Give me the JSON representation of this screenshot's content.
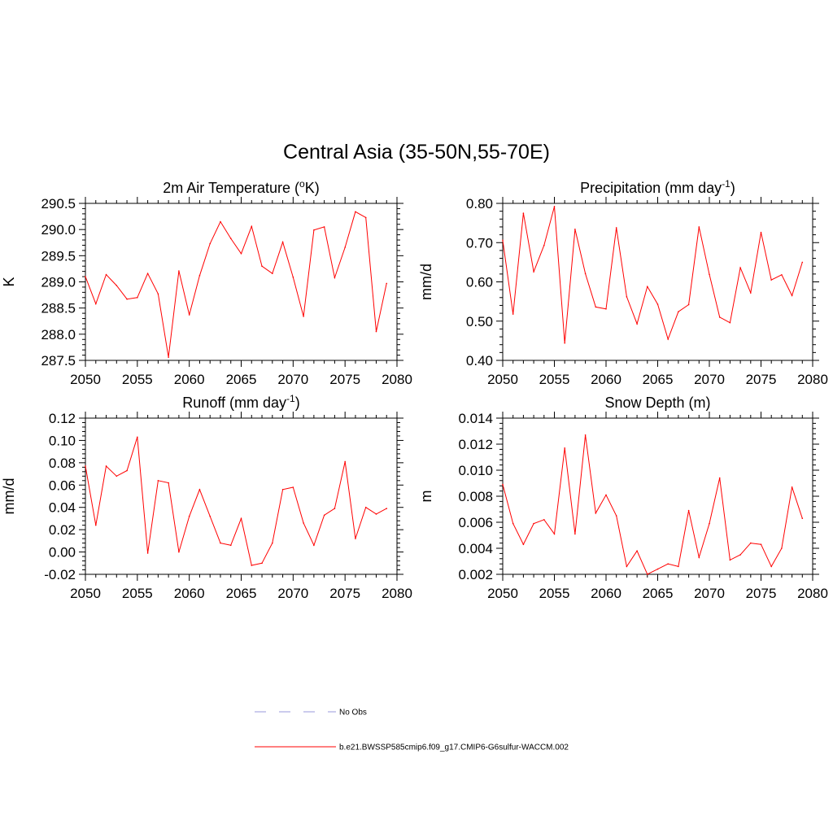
{
  "title": "Central Asia (35-50N,55-70E)",
  "colors": {
    "model": "#ff0000",
    "obs": "#9999dd"
  },
  "legend": {
    "items": [
      {
        "label": "No Obs",
        "style": "dashed",
        "color": "#9999dd"
      },
      {
        "label": "b.e21.BWSSP585cmip6.f09_g17.CMIP6-G6sulfur-WACCM.002",
        "style": "solid",
        "color": "#ff0000"
      }
    ]
  },
  "chart_data": [
    {
      "type": "line",
      "title": "2m Air Temperature (",
      "title_sup": "o",
      "title_after": "K)",
      "ylabel": "K",
      "xlim": [
        2050,
        2080
      ],
      "ylim": [
        287.5,
        290.5
      ],
      "xticks": [
        2050,
        2055,
        2060,
        2065,
        2070,
        2075,
        2080
      ],
      "yticks": [
        "287.5",
        "288.0",
        "288.5",
        "289.0",
        "289.5",
        "290.0",
        "290.5"
      ],
      "x": [
        2050,
        2051,
        2052,
        2053,
        2054,
        2055,
        2056,
        2057,
        2058,
        2059,
        2060,
        2061,
        2062,
        2063,
        2064,
        2065,
        2066,
        2067,
        2068,
        2069,
        2070,
        2071,
        2072,
        2073,
        2074,
        2075,
        2076,
        2077,
        2078,
        2079
      ],
      "series": [
        {
          "values": [
            289.1,
            288.58,
            289.14,
            288.93,
            288.67,
            288.7,
            289.16,
            288.77,
            287.56,
            289.21,
            288.37,
            289.12,
            289.73,
            290.15,
            289.83,
            289.54,
            290.06,
            289.3,
            289.16,
            289.76,
            289.09,
            288.34,
            289.99,
            290.05,
            289.08,
            289.66,
            290.34,
            290.23,
            288.05,
            288.97
          ]
        }
      ]
    },
    {
      "type": "line",
      "title": "Precipitation (mm day",
      "title_sup": "-1",
      "title_after": ")",
      "ylabel": "mm/d",
      "xlim": [
        2050,
        2080
      ],
      "ylim": [
        0.4,
        0.8
      ],
      "xticks": [
        2050,
        2055,
        2060,
        2065,
        2070,
        2075,
        2080
      ],
      "yticks": [
        "0.40",
        "0.50",
        "0.60",
        "0.70",
        "0.80"
      ],
      "x": [
        2050,
        2051,
        2052,
        2053,
        2054,
        2055,
        2056,
        2057,
        2058,
        2059,
        2060,
        2061,
        2062,
        2063,
        2064,
        2065,
        2066,
        2067,
        2068,
        2069,
        2070,
        2071,
        2072,
        2073,
        2074,
        2075,
        2076,
        2077,
        2078,
        2079
      ],
      "series": [
        {
          "values": [
            0.706,
            0.518,
            0.775,
            0.626,
            0.693,
            0.792,
            0.444,
            0.734,
            0.621,
            0.536,
            0.531,
            0.738,
            0.562,
            0.493,
            0.588,
            0.543,
            0.454,
            0.524,
            0.542,
            0.74,
            0.619,
            0.51,
            0.496,
            0.636,
            0.572,
            0.726,
            0.605,
            0.618,
            0.565,
            0.65
          ]
        }
      ]
    },
    {
      "type": "line",
      "title": "Runoff (mm day",
      "title_sup": "-1",
      "title_after": ")",
      "ylabel": "mm/d",
      "xlim": [
        2050,
        2080
      ],
      "ylim": [
        -0.02,
        0.12
      ],
      "xticks": [
        2050,
        2055,
        2060,
        2065,
        2070,
        2075,
        2080
      ],
      "yticks": [
        "-0.02",
        "0.00",
        "0.02",
        "0.04",
        "0.06",
        "0.08",
        "0.10",
        "0.12"
      ],
      "x": [
        2050,
        2051,
        2052,
        2053,
        2054,
        2055,
        2056,
        2057,
        2058,
        2059,
        2060,
        2061,
        2062,
        2063,
        2064,
        2065,
        2066,
        2067,
        2068,
        2069,
        2070,
        2071,
        2072,
        2073,
        2074,
        2075,
        2076,
        2077,
        2078,
        2079
      ],
      "series": [
        {
          "values": [
            0.077,
            0.024,
            0.077,
            0.068,
            0.073,
            0.103,
            -0.001,
            0.064,
            0.062,
            0.0,
            0.032,
            0.056,
            0.032,
            0.008,
            0.006,
            0.03,
            -0.012,
            -0.01,
            0.008,
            0.056,
            0.058,
            0.026,
            0.006,
            0.033,
            0.039,
            0.081,
            0.012,
            0.04,
            0.034,
            0.039
          ]
        }
      ]
    },
    {
      "type": "line",
      "title": "Snow Depth (m)",
      "title_sup": "",
      "title_after": "",
      "ylabel": "m",
      "xlim": [
        2050,
        2080
      ],
      "ylim": [
        0.002,
        0.014
      ],
      "xticks": [
        2050,
        2055,
        2060,
        2065,
        2070,
        2075,
        2080
      ],
      "yticks": [
        "0.002",
        "0.004",
        "0.006",
        "0.008",
        "0.010",
        "0.012",
        "0.014"
      ],
      "x": [
        2050,
        2051,
        2052,
        2053,
        2054,
        2055,
        2056,
        2057,
        2058,
        2059,
        2060,
        2061,
        2062,
        2063,
        2064,
        2065,
        2066,
        2067,
        2068,
        2069,
        2070,
        2071,
        2072,
        2073,
        2074,
        2075,
        2076,
        2077,
        2078,
        2079
      ],
      "series": [
        {
          "values": [
            0.0089,
            0.0059,
            0.0043,
            0.0059,
            0.0062,
            0.0051,
            0.0117,
            0.0051,
            0.0127,
            0.0067,
            0.0081,
            0.0065,
            0.0026,
            0.0038,
            0.002,
            0.0024,
            0.0028,
            0.0026,
            0.0069,
            0.0033,
            0.0059,
            0.0094,
            0.0031,
            0.0035,
            0.0044,
            0.0043,
            0.0026,
            0.004,
            0.0087,
            0.0063
          ]
        }
      ]
    }
  ]
}
